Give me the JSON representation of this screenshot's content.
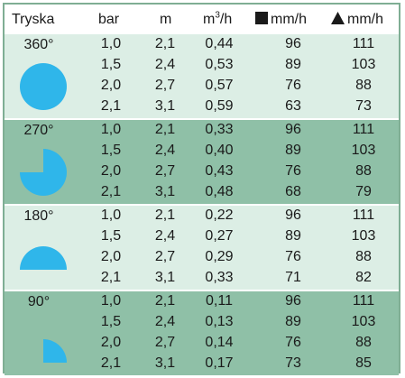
{
  "colors": {
    "light_band": "#dceee5",
    "dark_band": "#8fc0a7",
    "nozzle_fill": "#2fb6ea"
  },
  "header": {
    "col1": "Tryska",
    "col2": "bar",
    "col3": "m",
    "col4_base": "m",
    "col4_sup": "3",
    "col4_tail": "/h",
    "col5_label": "mm/h",
    "col5_icon": "square-icon",
    "col6_label": "mm/h",
    "col6_icon": "triangle-icon"
  },
  "groups": [
    {
      "angle": "360°",
      "nozzle_icon": "full-circle-icon",
      "rows": [
        {
          "bar": "1,0",
          "m": "2,1",
          "flow": "0,44",
          "sq": "96",
          "tri": "111"
        },
        {
          "bar": "1,5",
          "m": "2,4",
          "flow": "0,53",
          "sq": "89",
          "tri": "103"
        },
        {
          "bar": "2,0",
          "m": "2,7",
          "flow": "0,57",
          "sq": "76",
          "tri": "88"
        },
        {
          "bar": "2,1",
          "m": "3,1",
          "flow": "0,59",
          "sq": "63",
          "tri": "73"
        }
      ]
    },
    {
      "angle": "270°",
      "nozzle_icon": "three-quarter-circle-icon",
      "rows": [
        {
          "bar": "1,0",
          "m": "2,1",
          "flow": "0,33",
          "sq": "96",
          "tri": "111"
        },
        {
          "bar": "1,5",
          "m": "2,4",
          "flow": "0,40",
          "sq": "89",
          "tri": "103"
        },
        {
          "bar": "2,0",
          "m": "2,7",
          "flow": "0,43",
          "sq": "76",
          "tri": "88"
        },
        {
          "bar": "2,1",
          "m": "3,1",
          "flow": "0,48",
          "sq": "68",
          "tri": "79"
        }
      ]
    },
    {
      "angle": "180°",
      "nozzle_icon": "half-circle-icon",
      "rows": [
        {
          "bar": "1,0",
          "m": "2,1",
          "flow": "0,22",
          "sq": "96",
          "tri": "111"
        },
        {
          "bar": "1,5",
          "m": "2,4",
          "flow": "0,27",
          "sq": "89",
          "tri": "103"
        },
        {
          "bar": "2,0",
          "m": "2,7",
          "flow": "0,29",
          "sq": "76",
          "tri": "88"
        },
        {
          "bar": "2,1",
          "m": "3,1",
          "flow": "0,33",
          "sq": "71",
          "tri": "82"
        }
      ]
    },
    {
      "angle": "90°",
      "nozzle_icon": "quarter-circle-icon",
      "rows": [
        {
          "bar": "1,0",
          "m": "2,1",
          "flow": "0,11",
          "sq": "96",
          "tri": "111"
        },
        {
          "bar": "1,5",
          "m": "2,4",
          "flow": "0,13",
          "sq": "89",
          "tri": "103"
        },
        {
          "bar": "2,0",
          "m": "2,7",
          "flow": "0,14",
          "sq": "76",
          "tri": "88"
        },
        {
          "bar": "2,1",
          "m": "3,1",
          "flow": "0,17",
          "sq": "73",
          "tri": "85"
        }
      ]
    }
  ]
}
